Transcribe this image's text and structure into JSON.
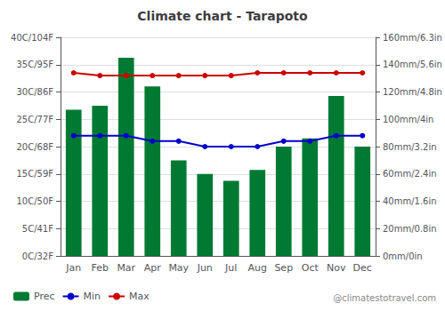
{
  "chart_data": {
    "type": "bar",
    "title": "Climate chart - Tarapoto",
    "categories": [
      "Jan",
      "Feb",
      "Mar",
      "Apr",
      "May",
      "Jun",
      "Jul",
      "Aug",
      "Sep",
      "Oct",
      "Nov",
      "Dec"
    ],
    "series": [
      {
        "name": "Prec",
        "type": "bar",
        "axis": "y2",
        "color": "#007A33",
        "values": [
          107,
          110,
          145,
          124,
          70,
          60,
          55,
          63,
          80,
          86,
          117,
          80
        ]
      },
      {
        "name": "Min",
        "type": "line",
        "marker": "circle",
        "color": "#0000CC",
        "values": [
          22,
          22,
          22,
          21,
          21,
          20,
          20,
          20,
          21,
          21,
          22,
          22
        ]
      },
      {
        "name": "Max",
        "type": "line",
        "marker": "circle",
        "color": "#CC0000",
        "values": [
          33.5,
          33,
          33,
          33,
          33,
          33,
          33,
          33.5,
          33.5,
          33.5,
          33.5,
          33.5
        ]
      }
    ],
    "ylim": [
      0,
      40
    ],
    "yticks": [
      {
        "value": 0,
        "label": "0C/32F"
      },
      {
        "value": 5,
        "label": "5C/41F"
      },
      {
        "value": 10,
        "label": "10C/50F"
      },
      {
        "value": 15,
        "label": "15C/59F"
      },
      {
        "value": 20,
        "label": "20C/68F"
      },
      {
        "value": 25,
        "label": "25C/77F"
      },
      {
        "value": 30,
        "label": "30C/86F"
      },
      {
        "value": 35,
        "label": "35C/95F"
      },
      {
        "value": 40,
        "label": "40C/104F"
      }
    ],
    "y2lim": [
      0,
      160
    ],
    "y2ticks": [
      {
        "value": 0,
        "label": "0mm/0in"
      },
      {
        "value": 20,
        "label": "20mm/0.8in"
      },
      {
        "value": 40,
        "label": "40mm/1.6in"
      },
      {
        "value": 60,
        "label": "60mm/2.4in"
      },
      {
        "value": 80,
        "label": "80mm/3.2in"
      },
      {
        "value": 100,
        "label": "100mm/4in"
      },
      {
        "value": 120,
        "label": "120mm/4.8in"
      },
      {
        "value": 140,
        "label": "140mm/5.6in"
      },
      {
        "value": 160,
        "label": "160mm/6.3in"
      }
    ],
    "grid": true,
    "legend": "bottom left",
    "annotations": [
      "@climatestotravel.com"
    ]
  }
}
